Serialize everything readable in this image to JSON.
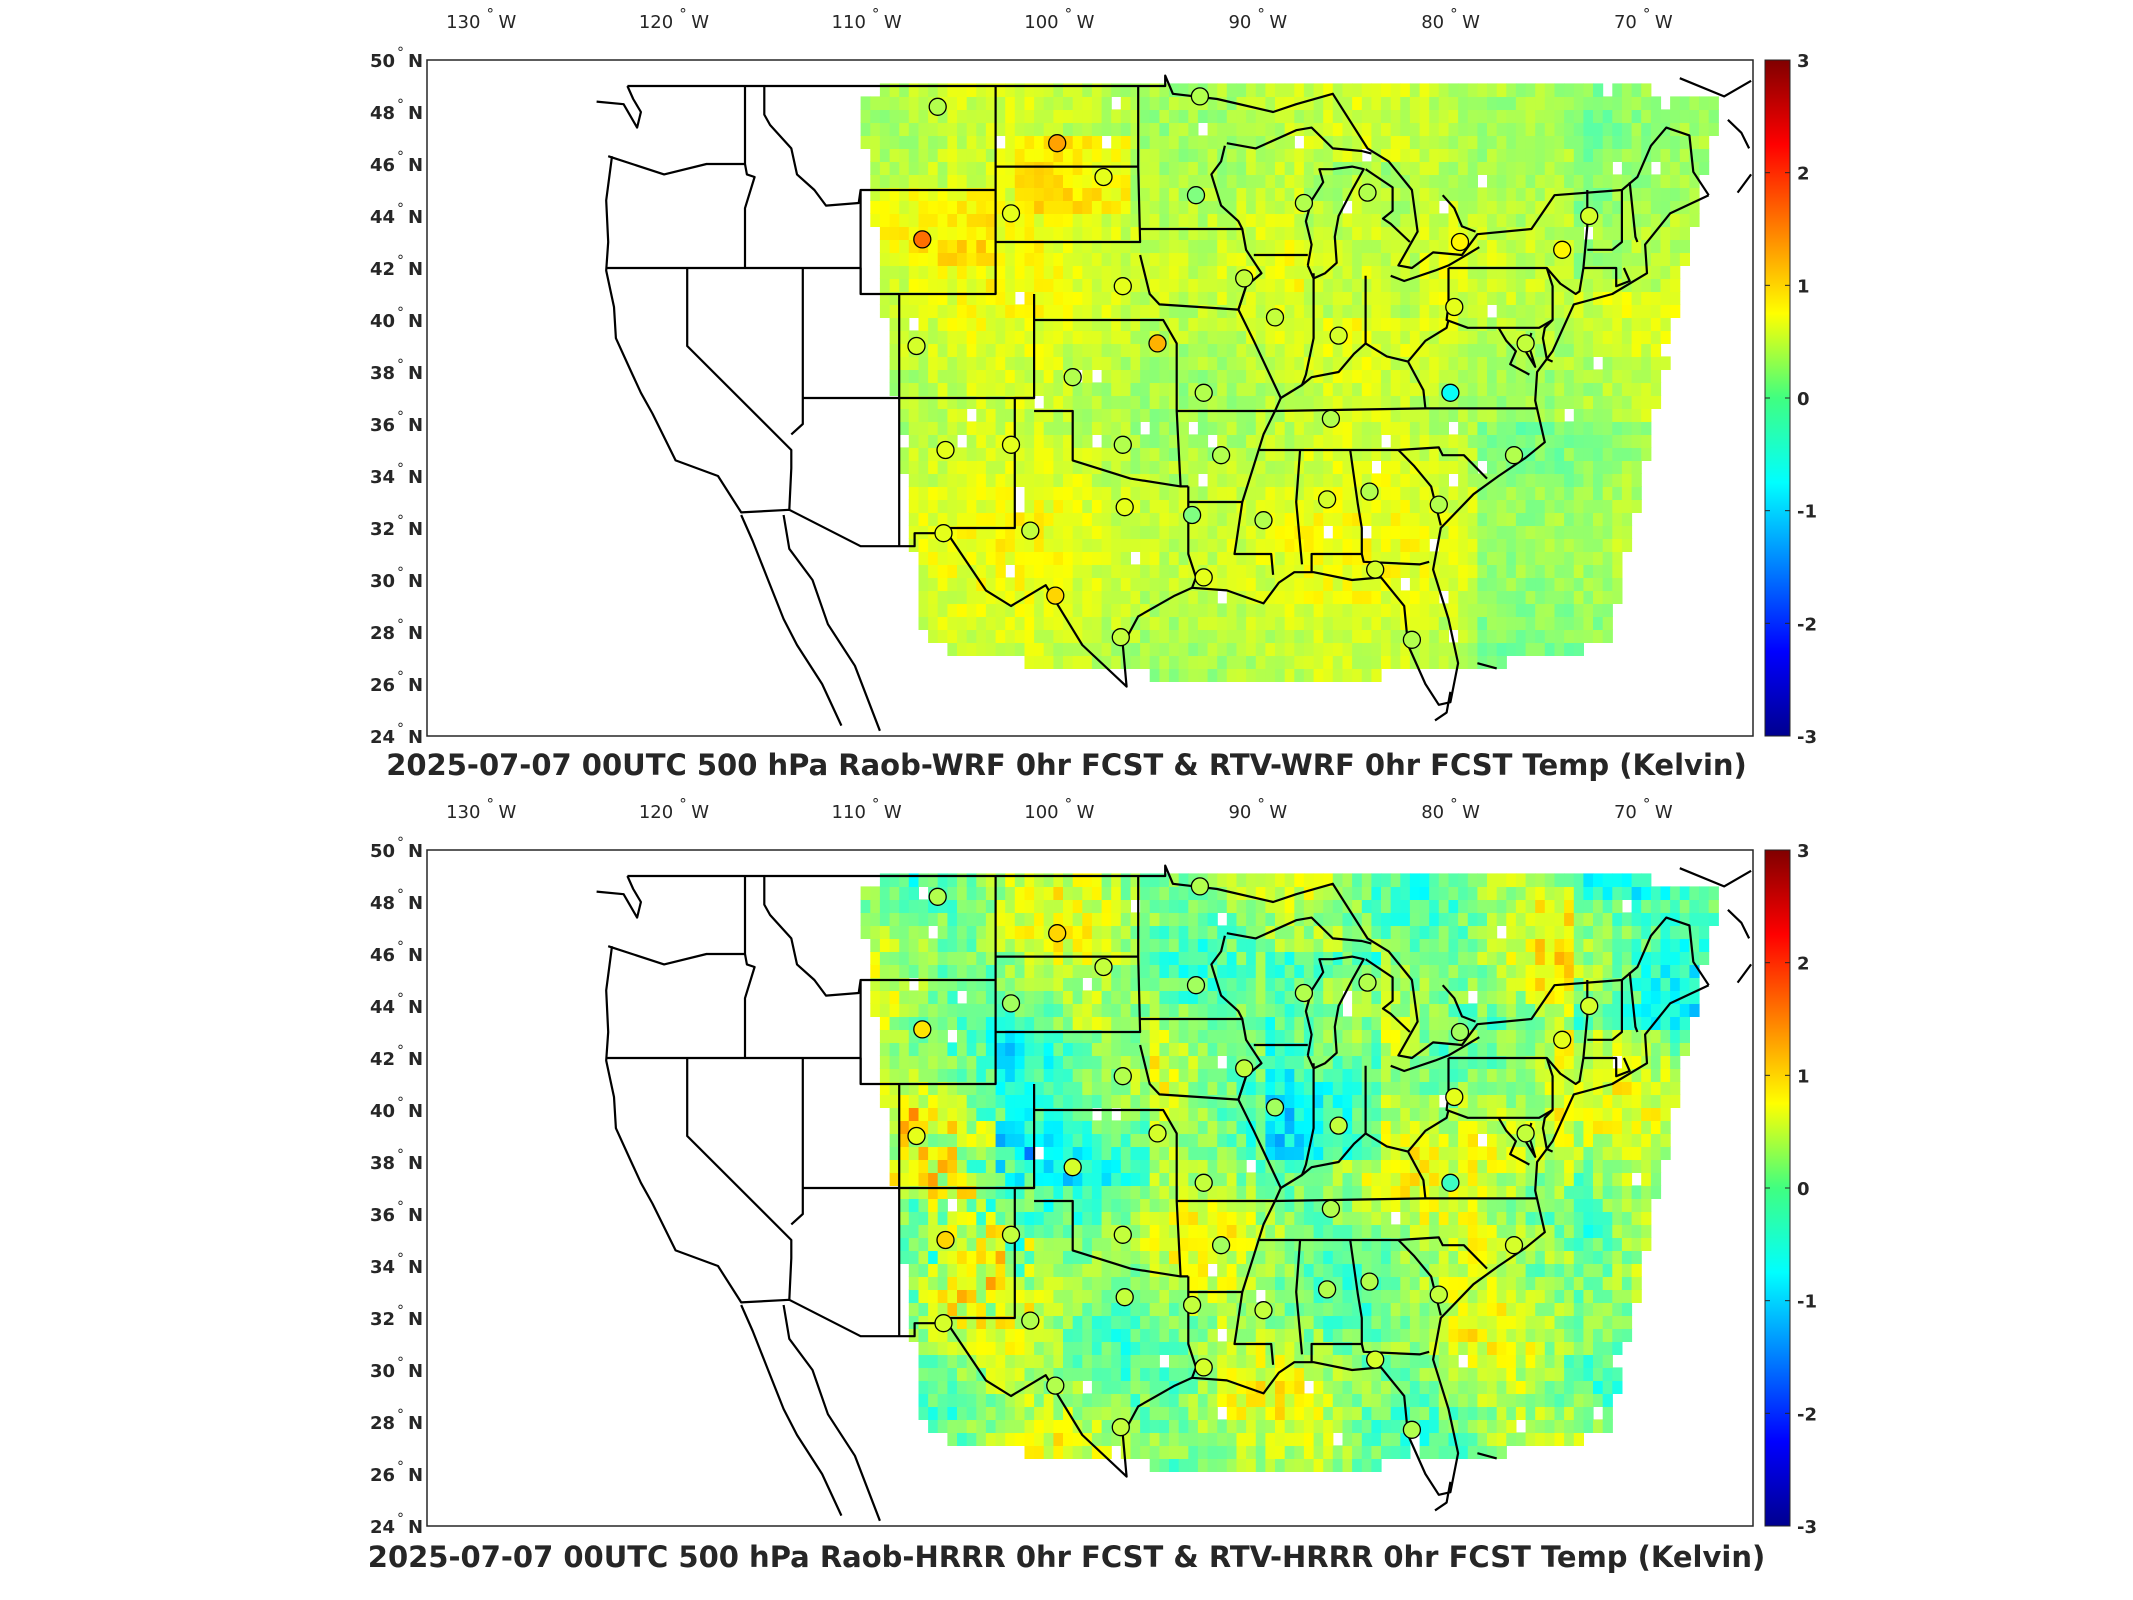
{
  "panels": [
    {
      "title": "2025-07-07 00UTC 500 hPa Raob-WRF 0hr FCST & RTV-WRF 0hr FCST Temp (Kelvin)",
      "variant": "wrf",
      "stations": [
        {
          "lon": -107.0,
          "lat": 48.2,
          "v": 0.3
        },
        {
          "lon": -93.4,
          "lat": 48.6,
          "v": 0.3
        },
        {
          "lon": -100.8,
          "lat": 46.8,
          "v": 1.3
        },
        {
          "lon": -98.4,
          "lat": 45.5,
          "v": 0.6
        },
        {
          "lon": -93.6,
          "lat": 44.8,
          "v": 0.0
        },
        {
          "lon": -103.2,
          "lat": 44.1,
          "v": 0.6
        },
        {
          "lon": -107.8,
          "lat": 43.1,
          "v": 1.6
        },
        {
          "lon": -88.0,
          "lat": 44.5,
          "v": 0.3
        },
        {
          "lon": -84.7,
          "lat": 44.9,
          "v": 0.3
        },
        {
          "lon": -73.2,
          "lat": 44.0,
          "v": 0.5
        },
        {
          "lon": -79.9,
          "lat": 43.0,
          "v": 0.8
        },
        {
          "lon": -74.6,
          "lat": 42.7,
          "v": 0.8
        },
        {
          "lon": -97.4,
          "lat": 41.3,
          "v": 0.6
        },
        {
          "lon": -91.1,
          "lat": 41.6,
          "v": 0.4
        },
        {
          "lon": -89.5,
          "lat": 40.1,
          "v": 0.4
        },
        {
          "lon": -80.2,
          "lat": 40.5,
          "v": 0.6
        },
        {
          "lon": -86.2,
          "lat": 39.4,
          "v": 0.5
        },
        {
          "lon": -108.1,
          "lat": 39.0,
          "v": 0.5
        },
        {
          "lon": -95.6,
          "lat": 39.1,
          "v": 1.2
        },
        {
          "lon": -76.5,
          "lat": 39.1,
          "v": 0.4
        },
        {
          "lon": -100.0,
          "lat": 37.8,
          "v": 0.3
        },
        {
          "lon": -93.2,
          "lat": 37.2,
          "v": 0.3
        },
        {
          "lon": -80.4,
          "lat": 37.2,
          "v": -0.7
        },
        {
          "lon": -86.6,
          "lat": 36.2,
          "v": 0.3
        },
        {
          "lon": -106.6,
          "lat": 35.0,
          "v": 0.6
        },
        {
          "lon": -103.2,
          "lat": 35.2,
          "v": 0.6
        },
        {
          "lon": -97.4,
          "lat": 35.2,
          "v": 0.3
        },
        {
          "lon": -92.3,
          "lat": 34.8,
          "v": 0.3
        },
        {
          "lon": -77.1,
          "lat": 34.8,
          "v": 0.3
        },
        {
          "lon": -97.3,
          "lat": 32.8,
          "v": 0.6
        },
        {
          "lon": -86.8,
          "lat": 33.1,
          "v": 0.5
        },
        {
          "lon": -84.6,
          "lat": 33.4,
          "v": 0.3
        },
        {
          "lon": -93.8,
          "lat": 32.5,
          "v": 0.0
        },
        {
          "lon": -90.1,
          "lat": 32.3,
          "v": 0.3
        },
        {
          "lon": -81.0,
          "lat": 32.9,
          "v": 0.3
        },
        {
          "lon": -106.7,
          "lat": 31.8,
          "v": 0.6
        },
        {
          "lon": -102.2,
          "lat": 31.9,
          "v": 0.4
        },
        {
          "lon": -93.2,
          "lat": 30.1,
          "v": 0.6
        },
        {
          "lon": -84.3,
          "lat": 30.4,
          "v": 0.5
        },
        {
          "lon": -100.9,
          "lat": 29.4,
          "v": 1.0
        },
        {
          "lon": -97.5,
          "lat": 27.8,
          "v": 0.4
        },
        {
          "lon": -82.4,
          "lat": 27.7,
          "v": 0.3
        }
      ]
    },
    {
      "title": "2025-07-07 00UTC 500 hPa Raob-HRRR 0hr FCST & RTV-HRRR 0hr FCST Temp (Kelvin)",
      "variant": "hrrr",
      "stations": [
        {
          "lon": -107.0,
          "lat": 48.2,
          "v": 0.3
        },
        {
          "lon": -93.4,
          "lat": 48.6,
          "v": 0.3
        },
        {
          "lon": -100.8,
          "lat": 46.8,
          "v": 1.0
        },
        {
          "lon": -98.4,
          "lat": 45.5,
          "v": 0.4
        },
        {
          "lon": -93.6,
          "lat": 44.8,
          "v": 0.2
        },
        {
          "lon": -103.2,
          "lat": 44.1,
          "v": 0.2
        },
        {
          "lon": -107.8,
          "lat": 43.1,
          "v": 0.9
        },
        {
          "lon": -88.0,
          "lat": 44.5,
          "v": 0.3
        },
        {
          "lon": -84.7,
          "lat": 44.9,
          "v": 0.3
        },
        {
          "lon": -73.2,
          "lat": 44.0,
          "v": 0.5
        },
        {
          "lon": -79.9,
          "lat": 43.0,
          "v": 0.2
        },
        {
          "lon": -74.6,
          "lat": 42.7,
          "v": 0.6
        },
        {
          "lon": -97.4,
          "lat": 41.3,
          "v": 0.3
        },
        {
          "lon": -91.1,
          "lat": 41.6,
          "v": 0.4
        },
        {
          "lon": -89.5,
          "lat": 40.1,
          "v": 0.2
        },
        {
          "lon": -80.2,
          "lat": 40.5,
          "v": 0.6
        },
        {
          "lon": -86.2,
          "lat": 39.4,
          "v": 0.4
        },
        {
          "lon": -108.1,
          "lat": 39.0,
          "v": 0.6
        },
        {
          "lon": -95.6,
          "lat": 39.1,
          "v": 0.5
        },
        {
          "lon": -76.5,
          "lat": 39.1,
          "v": 0.4
        },
        {
          "lon": -100.0,
          "lat": 37.8,
          "v": 0.5
        },
        {
          "lon": -93.2,
          "lat": 37.2,
          "v": 0.4
        },
        {
          "lon": -80.4,
          "lat": 37.2,
          "v": -0.4
        },
        {
          "lon": -86.6,
          "lat": 36.2,
          "v": 0.3
        },
        {
          "lon": -106.6,
          "lat": 35.0,
          "v": 1.0
        },
        {
          "lon": -103.2,
          "lat": 35.2,
          "v": 0.4
        },
        {
          "lon": -97.4,
          "lat": 35.2,
          "v": 0.4
        },
        {
          "lon": -92.3,
          "lat": 34.8,
          "v": 0.2
        },
        {
          "lon": -77.1,
          "lat": 34.8,
          "v": 0.5
        },
        {
          "lon": -97.3,
          "lat": 32.8,
          "v": 0.4
        },
        {
          "lon": -86.8,
          "lat": 33.1,
          "v": 0.3
        },
        {
          "lon": -84.6,
          "lat": 33.4,
          "v": 0.3
        },
        {
          "lon": -93.8,
          "lat": 32.5,
          "v": 0.4
        },
        {
          "lon": -90.1,
          "lat": 32.3,
          "v": 0.4
        },
        {
          "lon": -81.0,
          "lat": 32.9,
          "v": 0.4
        },
        {
          "lon": -106.7,
          "lat": 31.8,
          "v": 0.5
        },
        {
          "lon": -102.2,
          "lat": 31.9,
          "v": 0.3
        },
        {
          "lon": -93.2,
          "lat": 30.1,
          "v": 0.5
        },
        {
          "lon": -84.3,
          "lat": 30.4,
          "v": 0.5
        },
        {
          "lon": -100.9,
          "lat": 29.4,
          "v": 0.3
        },
        {
          "lon": -97.5,
          "lat": 27.8,
          "v": 0.4
        },
        {
          "lon": -82.4,
          "lat": 27.7,
          "v": 0.3
        }
      ]
    }
  ],
  "lon_ticks": [
    {
      "value": -130,
      "label": "130",
      "suffix": "W"
    },
    {
      "value": -120,
      "label": "120",
      "suffix": "W"
    },
    {
      "value": -110,
      "label": "110",
      "suffix": "W"
    },
    {
      "value": -100,
      "label": "100",
      "suffix": "W"
    },
    {
      "value": -90,
      "label": "90",
      "suffix": "W"
    },
    {
      "value": -80,
      "label": "80",
      "suffix": "W"
    },
    {
      "value": -70,
      "label": "70",
      "suffix": "W"
    }
  ],
  "lat_ticks": [
    {
      "value": 50,
      "label": "50",
      "suffix": "N"
    },
    {
      "value": 48,
      "label": "48",
      "suffix": "N"
    },
    {
      "value": 46,
      "label": "46",
      "suffix": "N"
    },
    {
      "value": 44,
      "label": "44",
      "suffix": "N"
    },
    {
      "value": 42,
      "label": "42",
      "suffix": "N"
    },
    {
      "value": 40,
      "label": "40",
      "suffix": "N"
    },
    {
      "value": 38,
      "label": "38",
      "suffix": "N"
    },
    {
      "value": 36,
      "label": "36",
      "suffix": "N"
    },
    {
      "value": 34,
      "label": "34",
      "suffix": "N"
    },
    {
      "value": 32,
      "label": "32",
      "suffix": "N"
    },
    {
      "value": 30,
      "label": "30",
      "suffix": "N"
    },
    {
      "value": 28,
      "label": "28",
      "suffix": "N"
    },
    {
      "value": 26,
      "label": "26",
      "suffix": "N"
    },
    {
      "value": 24,
      "label": "24",
      "suffix": "N"
    }
  ],
  "colorbar": {
    "min": -3,
    "max": 3,
    "ticks": [
      {
        "value": 3,
        "label": "3"
      },
      {
        "value": 2,
        "label": "2"
      },
      {
        "value": 1,
        "label": "1"
      },
      {
        "value": 0,
        "label": "0"
      },
      {
        "value": -1,
        "label": "-1"
      },
      {
        "value": -2,
        "label": "-2"
      },
      {
        "value": -3,
        "label": "-3"
      }
    ],
    "colormap": "jet"
  },
  "colors": {
    "frame": "#262626",
    "borders": "#000000",
    "missing_data": "#ffffff"
  }
}
